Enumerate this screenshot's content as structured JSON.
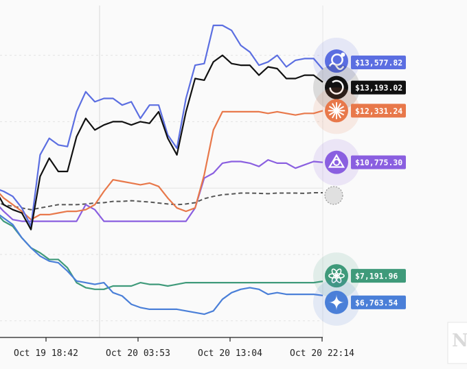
{
  "chart_data": {
    "type": "line",
    "x_ticks": [
      "Oct 19 18:42",
      "Oct 20 03:53",
      "Oct 20 13:04",
      "Oct 20 22:14"
    ],
    "y_range": [
      5500,
      15500
    ],
    "grid": true,
    "legend": "end-of-line labels",
    "series": [
      {
        "key": "blue-top",
        "color": "#5b6ee1",
        "icon": "octopus-logo-icon",
        "value_label": "$13,577.82",
        "dashed": false,
        "values": [
          10000,
          9900,
          9750,
          9400,
          8850,
          11000,
          11500,
          11300,
          11250,
          12300,
          12900,
          12600,
          12700,
          12700,
          12500,
          12600,
          12100,
          12500,
          12500,
          11600,
          11200,
          12700,
          13700,
          13750,
          14900,
          14900,
          14750,
          14300,
          14100,
          13700,
          13800,
          14000,
          13650,
          13850,
          13900,
          13900,
          13577.82
        ]
      },
      {
        "key": "black",
        "color": "#111111",
        "icon": "pilot-logo-icon",
        "value_label": "$13,193.02",
        "dashed": false,
        "values": [
          10000,
          9500,
          9350,
          9250,
          8750,
          10350,
          10900,
          10500,
          10500,
          11550,
          12100,
          11750,
          11900,
          12000,
          12000,
          11900,
          12000,
          11950,
          12300,
          11500,
          11000,
          12300,
          13300,
          13250,
          13800,
          14000,
          13750,
          13700,
          13700,
          13400,
          13650,
          13600,
          13300,
          13300,
          13400,
          13400,
          13193.02
        ]
      },
      {
        "key": "orange",
        "color": "#e8784a",
        "icon": "burst-logo-icon",
        "value_label": "$12,331.24",
        "dashed": false,
        "values": [
          10000,
          9700,
          9500,
          9300,
          9050,
          9200,
          9200,
          9250,
          9300,
          9300,
          9350,
          9500,
          9900,
          10250,
          10200,
          10150,
          10100,
          10150,
          10050,
          9700,
          9400,
          9300,
          9400,
          10400,
          11750,
          12300,
          12300,
          12300,
          12300,
          12300,
          12250,
          12300,
          12250,
          12200,
          12250,
          12250,
          12331.24
        ]
      },
      {
        "key": "dashed",
        "color": "#555555",
        "icon": "",
        "value_label": "",
        "dashed": true,
        "values": [
          9600,
          9500,
          9450,
          9400,
          9350,
          9400,
          9450,
          9500,
          9500,
          9500,
          9520,
          9550,
          9560,
          9600,
          9600,
          9620,
          9600,
          9580,
          9550,
          9520,
          9500,
          9520,
          9560,
          9680,
          9750,
          9800,
          9820,
          9850,
          9850,
          9840,
          9830,
          9850,
          9850,
          9850,
          9840,
          9860,
          9860
        ]
      },
      {
        "key": "purple",
        "color": "#8a5fe0",
        "icon": "quasar-logo-icon",
        "value_label": "$10,775.30",
        "dashed": false,
        "values": [
          9600,
          9300,
          9050,
          9000,
          9000,
          9000,
          9000,
          9000,
          9000,
          9000,
          9500,
          9350,
          9000,
          9000,
          9000,
          9000,
          9000,
          9000,
          9000,
          9000,
          9000,
          9000,
          9400,
          10300,
          10450,
          10750,
          10800,
          10800,
          10750,
          10650,
          10850,
          10750,
          10750,
          10600,
          10700,
          10800,
          10775.3
        ]
      },
      {
        "key": "green",
        "color": "#3f9a7a",
        "icon": "flower-logo-icon",
        "value_label": "$7,191.96",
        "dashed": false,
        "values": [
          9300,
          9000,
          8850,
          8500,
          8200,
          8050,
          7850,
          7850,
          7600,
          7150,
          7000,
          6950,
          6950,
          7050,
          7050,
          7050,
          7150,
          7100,
          7100,
          7050,
          7100,
          7150,
          7150,
          7150,
          7150,
          7150,
          7150,
          7150,
          7150,
          7150,
          7150,
          7150,
          7150,
          7150,
          7150,
          7150,
          7191.96
        ]
      },
      {
        "key": "blue-bottom",
        "color": "#4a7fd8",
        "icon": "sparkle-logo-icon",
        "value_label": "$6,763.54",
        "dashed": false,
        "values": [
          9300,
          9100,
          8900,
          8500,
          8200,
          7950,
          7800,
          7750,
          7500,
          7200,
          7150,
          7100,
          7150,
          6850,
          6750,
          6500,
          6400,
          6350,
          6350,
          6350,
          6350,
          6300,
          6250,
          6200,
          6300,
          6650,
          6850,
          6950,
          7000,
          6950,
          6800,
          6850,
          6800,
          6800,
          6800,
          6800,
          6763.54
        ]
      }
    ]
  },
  "watermark": "N"
}
